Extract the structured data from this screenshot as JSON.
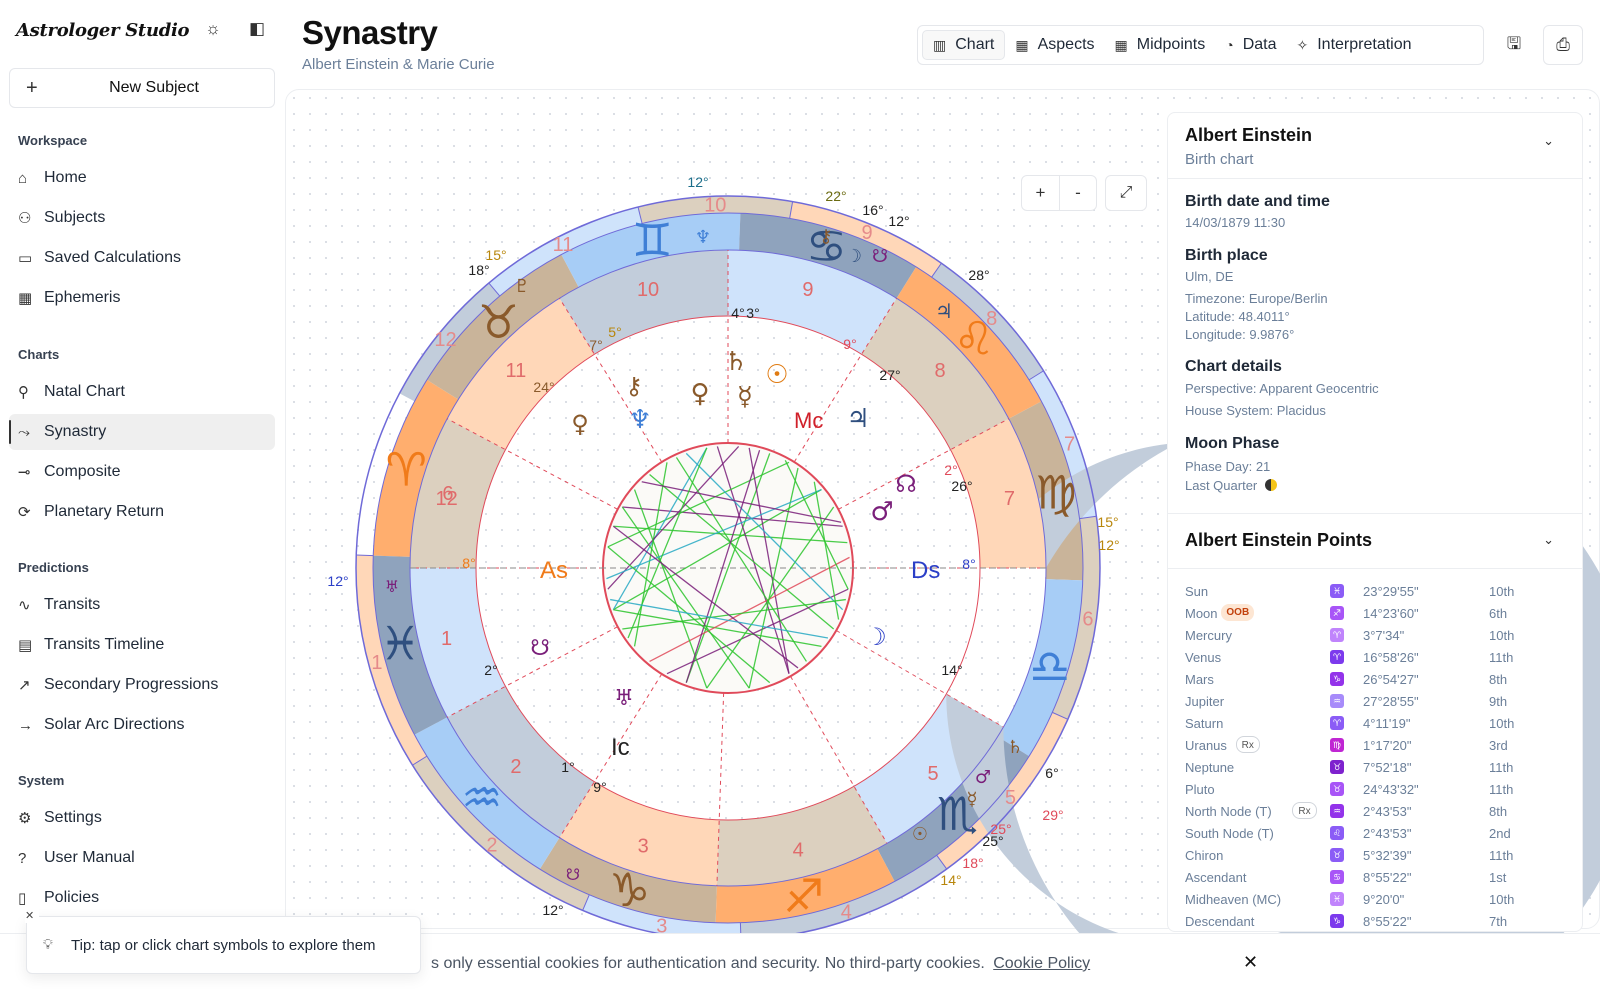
{
  "brand": "Astrologer Studio",
  "new_subject_label": "New Subject",
  "sidebar": {
    "sections": [
      {
        "title": "Workspace",
        "items": [
          {
            "label": "Home",
            "icon": "home-icon"
          },
          {
            "label": "Subjects",
            "icon": "users-icon"
          },
          {
            "label": "Saved Calculations",
            "icon": "folder-icon"
          },
          {
            "label": "Ephemeris",
            "icon": "table-icon"
          }
        ]
      },
      {
        "title": "Charts",
        "items": [
          {
            "label": "Natal Chart",
            "icon": "user-icon"
          },
          {
            "label": "Synastry",
            "icon": "route-icon",
            "active": true
          },
          {
            "label": "Composite",
            "icon": "git-commit-icon"
          },
          {
            "label": "Planetary Return",
            "icon": "refresh-icon"
          }
        ]
      },
      {
        "title": "Predictions",
        "items": [
          {
            "label": "Transits",
            "icon": "activity-icon"
          },
          {
            "label": "Transits Timeline",
            "icon": "calendar-icon"
          },
          {
            "label": "Secondary Progressions",
            "icon": "trending-up-icon"
          },
          {
            "label": "Solar Arc Directions",
            "icon": "arrow-right-icon"
          }
        ]
      },
      {
        "title": "System",
        "items": [
          {
            "label": "Settings",
            "icon": "gear-icon"
          },
          {
            "label": "User Manual",
            "icon": "help-circle-icon"
          },
          {
            "label": "Policies",
            "icon": "file-icon"
          }
        ]
      }
    ]
  },
  "header": {
    "title": "Synastry",
    "subtitle": "Albert Einstein & Marie Curie",
    "tabs": [
      {
        "label": "Chart",
        "icon": "bar-chart-icon",
        "active": true
      },
      {
        "label": "Aspects",
        "icon": "grid-icon"
      },
      {
        "label": "Midpoints",
        "icon": "grid-icon"
      },
      {
        "label": "Data",
        "icon": "pie-icon"
      },
      {
        "label": "Interpretation",
        "icon": "sparkles-icon"
      }
    ]
  },
  "zoom": {
    "in": "+",
    "out": "-"
  },
  "wheel": {
    "outer_signs": [
      "♈",
      "♉",
      "♊",
      "♋",
      "♌",
      "♍",
      "♎",
      "♏",
      "♐",
      "♑",
      "♒",
      "♓"
    ],
    "asc_label": "As",
    "desc_label": "Ds",
    "mc_label": "Mc",
    "ic_label": "Ic",
    "degree_labels": [
      "12°",
      "22°",
      "16°",
      "12°",
      "28°",
      "15°",
      "18°",
      "15°",
      "12°",
      "12°",
      "29°",
      "25°",
      "18°",
      "14°",
      "6°",
      "9°",
      "1°",
      "2°",
      "24°",
      "7°",
      "5°",
      "4°",
      "3°",
      "9°",
      "27°",
      "2°",
      "26°",
      "8°",
      "14°",
      "25°",
      "12°",
      "8°"
    ]
  },
  "info": {
    "name": "Albert Einstein",
    "subtitle": "Birth chart",
    "birth_dt_label": "Birth date and time",
    "birth_dt": "14/03/1879 11:30",
    "birth_place_label": "Birth place",
    "birth_place": "Ulm, DE",
    "timezone": "Timezone: Europe/Berlin",
    "latitude": "Latitude: 48.4011°",
    "longitude": "Longitude: 9.9876°",
    "chart_details_label": "Chart details",
    "perspective": "Perspective: Apparent Geocentric",
    "house_system": "House System: Placidus",
    "moon_phase_label": "Moon Phase",
    "phase_day": "Phase Day: 21",
    "phase_name": "Last Quarter",
    "points_title": "Albert Einstein Points",
    "points": [
      {
        "name": "Sun",
        "degree": "23°29'55\"",
        "house": "10th",
        "sign": "♓"
      },
      {
        "name": "Moon",
        "degree": "14°23'60\"",
        "house": "6th",
        "badge": "OOB",
        "sign": "♐"
      },
      {
        "name": "Mercury",
        "degree": "3°7'34\"",
        "house": "10th",
        "sign": "♈"
      },
      {
        "name": "Venus",
        "degree": "16°58'26\"",
        "house": "11th",
        "sign": "♈"
      },
      {
        "name": "Mars",
        "degree": "26°54'27\"",
        "house": "8th",
        "sign": "♑"
      },
      {
        "name": "Jupiter",
        "degree": "27°28'55\"",
        "house": "9th",
        "sign": "♒"
      },
      {
        "name": "Saturn",
        "degree": "4°11'19\"",
        "house": "10th",
        "sign": "♈"
      },
      {
        "name": "Uranus",
        "degree": "1°17'20\"",
        "house": "3rd",
        "badge": "Rx",
        "sign": "♍"
      },
      {
        "name": "Neptune",
        "degree": "7°52'18\"",
        "house": "11th",
        "sign": "♉"
      },
      {
        "name": "Pluto",
        "degree": "24°43'32\"",
        "house": "11th",
        "sign": "♉"
      },
      {
        "name": "North Node (T)",
        "degree": "2°43'53\"",
        "house": "8th",
        "badge": "Rx",
        "sign": "♒"
      },
      {
        "name": "South Node (T)",
        "degree": "2°43'53\"",
        "house": "2nd",
        "sign": "♌"
      },
      {
        "name": "Chiron",
        "degree": "5°32'39\"",
        "house": "11th",
        "sign": "♉"
      },
      {
        "name": "Ascendant",
        "degree": "8°55'22\"",
        "house": "1st",
        "sign": "♋"
      },
      {
        "name": "Midheaven (MC)",
        "degree": "9°20'0\"",
        "house": "10th",
        "sign": "♓"
      },
      {
        "name": "Descendant",
        "degree": "8°55'22\"",
        "house": "7th",
        "sign": "♑"
      }
    ]
  },
  "cookie": {
    "text": "s only essential cookies for authentication and security. No third-party cookies.",
    "link": "Cookie Policy",
    "close": "✕"
  },
  "tip": {
    "text": "Tip: tap or click chart symbols to explore them",
    "close": "✕"
  }
}
